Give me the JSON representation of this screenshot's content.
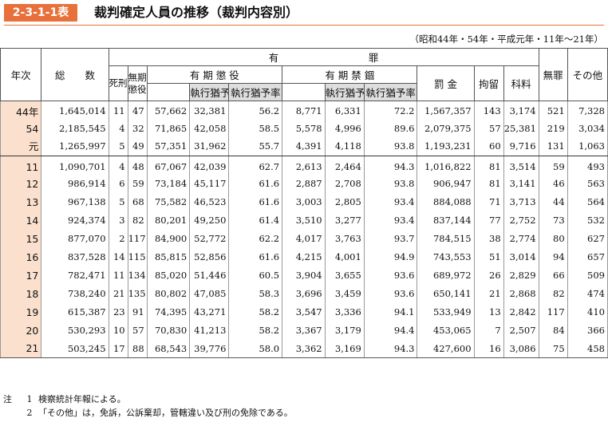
{
  "header": {
    "badge": "2-3-1-1表",
    "title": "裁判確定人員の推移（裁判内容別）"
  },
  "period_note": "（昭和44年・54年・平成元年・11年～21年）",
  "columns": {
    "year": "年次",
    "total": "総　　数",
    "yuzai": "有　　　　　　　　　罪",
    "death": "死刑",
    "life": "無期懲役",
    "choueki": "有 期 懲 役",
    "kinko": "有 期 禁 錮",
    "suspended": "執行猶予",
    "suspended_rate": "執行猶予率",
    "fine": "罰 金",
    "kouryu": "拘留",
    "karyo": "科料",
    "muzai": "無罪",
    "other": "その他"
  },
  "rows": [
    {
      "year": "44年",
      "total": "1,645,014",
      "death": "11",
      "life": "47",
      "ch": "57,662",
      "ch_s": "32,381",
      "ch_r": "56.2",
      "kn": "8,771",
      "kn_s": "6,331",
      "kn_r": "72.2",
      "fine": "1,567,357",
      "kouryu": "143",
      "karyo": "3,174",
      "muzai": "521",
      "other": "7,328"
    },
    {
      "year": "54",
      "total": "2,185,545",
      "death": "4",
      "life": "32",
      "ch": "71,865",
      "ch_s": "42,058",
      "ch_r": "58.5",
      "kn": "5,578",
      "kn_s": "4,996",
      "kn_r": "89.6",
      "fine": "2,079,375",
      "kouryu": "57",
      "karyo": "25,381",
      "muzai": "219",
      "other": "3,034"
    },
    {
      "year": "元",
      "total": "1,265,997",
      "death": "5",
      "life": "49",
      "ch": "57,351",
      "ch_s": "31,962",
      "ch_r": "55.7",
      "kn": "4,391",
      "kn_s": "4,118",
      "kn_r": "93.8",
      "fine": "1,193,231",
      "kouryu": "60",
      "karyo": "9,716",
      "muzai": "131",
      "other": "1,063"
    },
    {
      "year": "11",
      "total": "1,090,701",
      "death": "4",
      "life": "48",
      "ch": "67,067",
      "ch_s": "42,039",
      "ch_r": "62.7",
      "kn": "2,613",
      "kn_s": "2,464",
      "kn_r": "94.3",
      "fine": "1,016,822",
      "kouryu": "81",
      "karyo": "3,514",
      "muzai": "59",
      "other": "493"
    },
    {
      "year": "12",
      "total": "986,914",
      "death": "6",
      "life": "59",
      "ch": "73,184",
      "ch_s": "45,117",
      "ch_r": "61.6",
      "kn": "2,887",
      "kn_s": "2,708",
      "kn_r": "93.8",
      "fine": "906,947",
      "kouryu": "81",
      "karyo": "3,141",
      "muzai": "46",
      "other": "563"
    },
    {
      "year": "13",
      "total": "967,138",
      "death": "5",
      "life": "68",
      "ch": "75,582",
      "ch_s": "46,523",
      "ch_r": "61.6",
      "kn": "3,003",
      "kn_s": "2,805",
      "kn_r": "93.4",
      "fine": "884,088",
      "kouryu": "71",
      "karyo": "3,713",
      "muzai": "44",
      "other": "564"
    },
    {
      "year": "14",
      "total": "924,374",
      "death": "3",
      "life": "82",
      "ch": "80,201",
      "ch_s": "49,250",
      "ch_r": "61.4",
      "kn": "3,510",
      "kn_s": "3,277",
      "kn_r": "93.4",
      "fine": "837,144",
      "kouryu": "77",
      "karyo": "2,752",
      "muzai": "73",
      "other": "532"
    },
    {
      "year": "15",
      "total": "877,070",
      "death": "2",
      "life": "117",
      "ch": "84,900",
      "ch_s": "52,772",
      "ch_r": "62.2",
      "kn": "4,017",
      "kn_s": "3,763",
      "kn_r": "93.7",
      "fine": "784,515",
      "kouryu": "38",
      "karyo": "2,774",
      "muzai": "80",
      "other": "627"
    },
    {
      "year": "16",
      "total": "837,528",
      "death": "14",
      "life": "115",
      "ch": "85,815",
      "ch_s": "52,856",
      "ch_r": "61.6",
      "kn": "4,215",
      "kn_s": "4,001",
      "kn_r": "94.9",
      "fine": "743,553",
      "kouryu": "51",
      "karyo": "3,014",
      "muzai": "94",
      "other": "657"
    },
    {
      "year": "17",
      "total": "782,471",
      "death": "11",
      "life": "134",
      "ch": "85,020",
      "ch_s": "51,446",
      "ch_r": "60.5",
      "kn": "3,904",
      "kn_s": "3,655",
      "kn_r": "93.6",
      "fine": "689,972",
      "kouryu": "26",
      "karyo": "2,829",
      "muzai": "66",
      "other": "509"
    },
    {
      "year": "18",
      "total": "738,240",
      "death": "21",
      "life": "135",
      "ch": "80,802",
      "ch_s": "47,085",
      "ch_r": "58.3",
      "kn": "3,696",
      "kn_s": "3,459",
      "kn_r": "93.6",
      "fine": "650,141",
      "kouryu": "21",
      "karyo": "2,868",
      "muzai": "82",
      "other": "474"
    },
    {
      "year": "19",
      "total": "615,387",
      "death": "23",
      "life": "91",
      "ch": "74,395",
      "ch_s": "43,271",
      "ch_r": "58.2",
      "kn": "3,547",
      "kn_s": "3,336",
      "kn_r": "94.1",
      "fine": "533,949",
      "kouryu": "13",
      "karyo": "2,842",
      "muzai": "117",
      "other": "410"
    },
    {
      "year": "20",
      "total": "530,293",
      "death": "10",
      "life": "57",
      "ch": "70,830",
      "ch_s": "41,213",
      "ch_r": "58.2",
      "kn": "3,367",
      "kn_s": "3,179",
      "kn_r": "94.4",
      "fine": "453,065",
      "kouryu": "7",
      "karyo": "2,507",
      "muzai": "84",
      "other": "366"
    },
    {
      "year": "21",
      "total": "503,245",
      "death": "17",
      "life": "88",
      "ch": "68,543",
      "ch_s": "39,776",
      "ch_r": "58.0",
      "kn": "3,362",
      "kn_s": "3,169",
      "kn_r": "94.3",
      "fine": "427,600",
      "kouryu": "16",
      "karyo": "3,086",
      "muzai": "75",
      "other": "458"
    }
  ],
  "notes": {
    "label": "注",
    "items": [
      {
        "no": "1",
        "text": "検察統計年報による。"
      },
      {
        "no": "2",
        "text": "「その他」は，免訴，公訴棄却，管轄違い及び刑の免除である。"
      }
    ]
  },
  "colors": {
    "badge": "#e8703a",
    "year_column": "#fbe0cd",
    "sub_header": "#dedede"
  }
}
